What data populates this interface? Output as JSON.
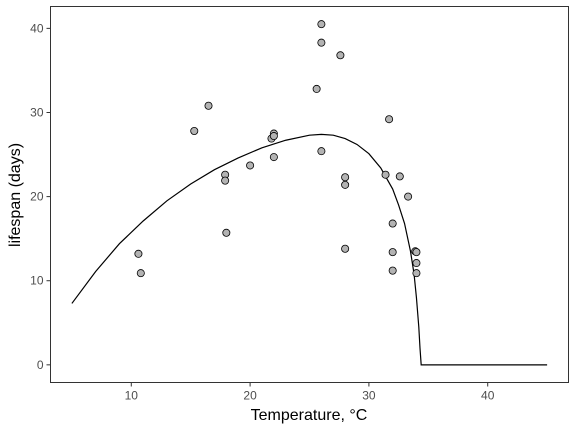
{
  "chart_data": {
    "type": "scatter",
    "title": "",
    "xlabel": "Temperature, °C",
    "ylabel": "lifespan (days)",
    "xlim": [
      3.2,
      46.8
    ],
    "ylim": [
      -2.1,
      42.6
    ],
    "xticks": [
      10,
      20,
      30,
      40
    ],
    "yticks": [
      0,
      10,
      20,
      30,
      40
    ],
    "xtick_labels": [
      "10",
      "20",
      "30",
      "40"
    ],
    "ytick_labels": [
      "0",
      "10",
      "20",
      "30",
      "40"
    ],
    "grid": false,
    "legend": "none",
    "series": [
      {
        "kind": "points",
        "x": [
          10.6,
          10.8,
          15.3,
          16.5,
          17.9,
          17.9,
          18.0,
          20.0,
          21.8,
          22.0,
          22.0,
          22.0,
          25.6,
          26.0,
          26.0,
          26.0,
          27.6,
          28.0,
          28.0,
          28.0,
          31.4,
          31.7,
          32.0,
          32.0,
          32.0,
          32.6,
          33.3,
          33.9,
          34.0,
          34.0,
          34.0
        ],
        "y": [
          13.2,
          10.9,
          27.8,
          30.8,
          22.6,
          21.9,
          15.7,
          23.7,
          26.9,
          27.5,
          27.2,
          24.7,
          32.8,
          40.5,
          38.3,
          25.4,
          36.8,
          22.3,
          21.4,
          13.8,
          22.6,
          29.2,
          16.8,
          13.4,
          11.2,
          22.4,
          20.0,
          13.5,
          12.1,
          10.9,
          13.4
        ],
        "fill": "#b3b3b3",
        "stroke": "#000000"
      },
      {
        "kind": "fit",
        "x": [
          5,
          7,
          9,
          11,
          13,
          15,
          17,
          19,
          21,
          23,
          25,
          26,
          27,
          28,
          29,
          30,
          31,
          32,
          32.5,
          33,
          33.5,
          33.8,
          34.0,
          34.2,
          34.3,
          34.4,
          45
        ],
        "y": [
          7.3,
          11.1,
          14.4,
          17.1,
          19.5,
          21.5,
          23.2,
          24.6,
          25.8,
          26.7,
          27.3,
          27.4,
          27.3,
          26.9,
          26.2,
          25.1,
          23.4,
          20.9,
          19.0,
          16.8,
          13.5,
          10.8,
          8.0,
          4.5,
          2.0,
          0,
          0
        ],
        "stroke": "#000000"
      }
    ]
  }
}
